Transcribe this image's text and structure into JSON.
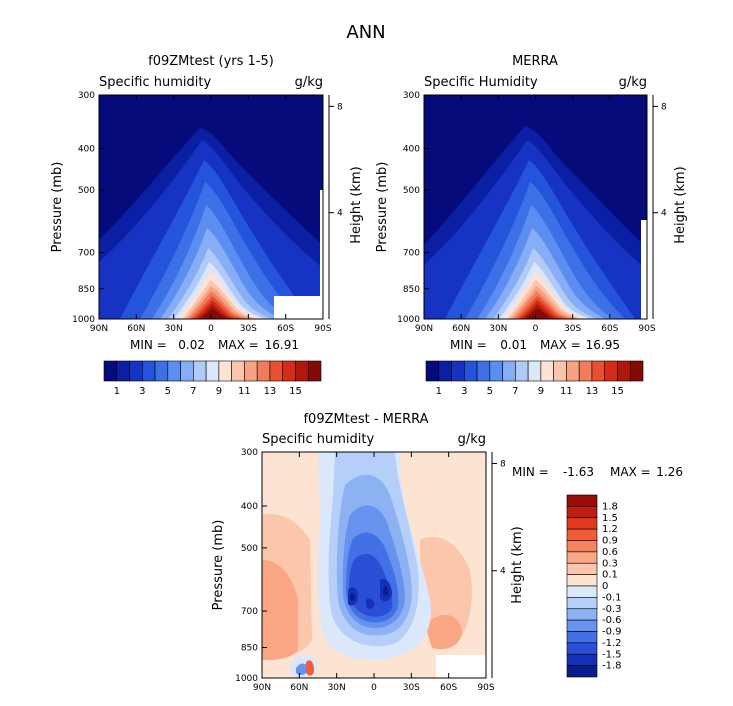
{
  "page_title": "ANN",
  "chart_data": [
    {
      "type": "heatmap",
      "id": "model",
      "title": "f09ZMtest (yrs 1-5)",
      "subtitle_left": "Specific humidity",
      "subtitle_right": "g/kg",
      "xlabel": "",
      "ylabel": "Pressure (mb)",
      "y2label": "Height (km)",
      "x_ticks": [
        "90N",
        "60N",
        "30N",
        "0",
        "30S",
        "60S",
        "90S"
      ],
      "y_ticks": [
        "300",
        "400",
        "500",
        "700",
        "850",
        "1000"
      ],
      "y_tick_values": [
        300,
        400,
        500,
        700,
        850,
        1000
      ],
      "y2_ticks": [
        "8",
        "4"
      ],
      "y2_tick_values": [
        8,
        4
      ],
      "ylim": [
        300,
        1000
      ],
      "xlim": [
        90,
        -90
      ],
      "min_label": "MIN =",
      "min_value": "0.02",
      "max_label": "MAX =",
      "max_value": "16.91",
      "colorbar_labels": [
        "1",
        "3",
        "5",
        "7",
        "9",
        "11",
        "13",
        "15"
      ],
      "colorbar_colors": [
        "#050b7a",
        "#0a1fa3",
        "#1633c3",
        "#2454db",
        "#3d70e6",
        "#5b8ef0",
        "#86adf5",
        "#b1cbf8",
        "#dbe6fb",
        "#fde3d3",
        "#fac5ac",
        "#f8a283",
        "#f27c5a",
        "#e8512f",
        "#d52b18",
        "#b0170d",
        "#820b06"
      ]
    },
    {
      "type": "heatmap",
      "id": "obs",
      "title": "MERRA",
      "subtitle_left": "Specific Humidity",
      "subtitle_right": "g/kg",
      "xlabel": "",
      "ylabel": "Pressure (mb)",
      "y2label": "Height (km)",
      "x_ticks": [
        "90N",
        "60N",
        "30N",
        "0",
        "30S",
        "60S",
        "90S"
      ],
      "y_ticks": [
        "300",
        "400",
        "500",
        "700",
        "850",
        "1000"
      ],
      "y_tick_values": [
        300,
        400,
        500,
        700,
        850,
        1000
      ],
      "y2_ticks": [
        "8",
        "4"
      ],
      "y2_tick_values": [
        8,
        4
      ],
      "ylim": [
        300,
        1000
      ],
      "xlim": [
        90,
        -90
      ],
      "min_label": "MIN =",
      "min_value": "0.01",
      "max_label": "MAX =",
      "max_value": "16.95",
      "colorbar_labels": [
        "1",
        "3",
        "5",
        "7",
        "9",
        "11",
        "13",
        "15"
      ],
      "colorbar_colors": [
        "#050b7a",
        "#0a1fa3",
        "#1633c3",
        "#2454db",
        "#3d70e6",
        "#5b8ef0",
        "#86adf5",
        "#b1cbf8",
        "#dbe6fb",
        "#fde3d3",
        "#fac5ac",
        "#f8a283",
        "#f27c5a",
        "#e8512f",
        "#d52b18",
        "#b0170d",
        "#820b06"
      ]
    },
    {
      "type": "heatmap",
      "id": "diff",
      "title": "f09ZMtest - MERRA",
      "subtitle_left": "Specific humidity",
      "subtitle_right": "g/kg",
      "xlabel": "",
      "ylabel": "Pressure (mb)",
      "y2label": "Height (km)",
      "x_ticks": [
        "90N",
        "60N",
        "30N",
        "0",
        "30S",
        "60S",
        "90S"
      ],
      "y_ticks": [
        "300",
        "400",
        "500",
        "700",
        "850",
        "1000"
      ],
      "y_tick_values": [
        300,
        400,
        500,
        700,
        850,
        1000
      ],
      "y2_ticks": [
        "8",
        "4"
      ],
      "y2_tick_values": [
        8,
        4
      ],
      "ylim": [
        300,
        1000
      ],
      "xlim": [
        90,
        -90
      ],
      "min_label": "MIN =",
      "min_value": "-1.63",
      "max_label": "MAX =",
      "max_value": "1.26",
      "colorbar_labels": [
        "1.8",
        "1.5",
        "1.2",
        "0.9",
        "0.6",
        "0.3",
        "0.1",
        "0",
        "-0.1",
        "-0.3",
        "-0.6",
        "-0.9",
        "-1.2",
        "-1.5",
        "-1.8"
      ],
      "colorbar_colors": [
        "#990d08",
        "#c01e0e",
        "#df3a1c",
        "#ef5d36",
        "#f5825b",
        "#f8a683",
        "#fbc6ab",
        "#fde4d2",
        "#dbe8fb",
        "#b6cff8",
        "#8db2f4",
        "#6793ef",
        "#4270e5",
        "#2a4fd6",
        "#1430b8",
        "#081c8c"
      ]
    }
  ]
}
